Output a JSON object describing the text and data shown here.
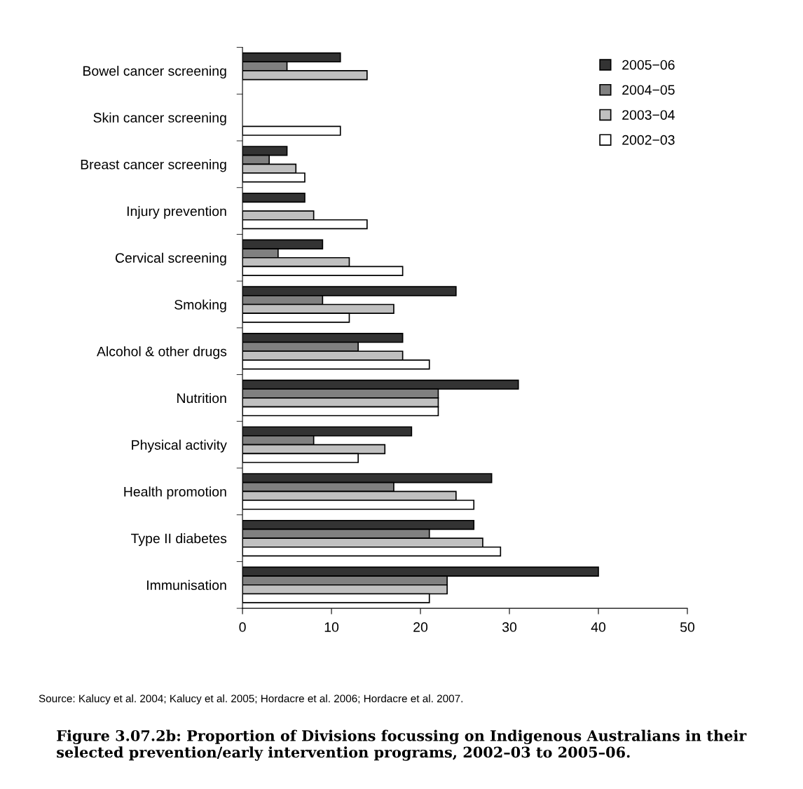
{
  "chart_data": {
    "type": "bar",
    "orientation": "horizontal",
    "title": "Figure 3.07.2b: Proportion of Divisions focussing on Indigenous Australians in their selected prevention/early intervention programs, 2002–03 to 2005–06.",
    "categories": [
      "Bowel cancer screening",
      "Skin cancer screening",
      "Breast cancer screening",
      "Injury prevention",
      "Cervical screening",
      "Smoking",
      "Alcohol & other drugs",
      "Nutrition",
      "Physical activity",
      "Health promotion",
      "Type II diabetes",
      "Immunisation"
    ],
    "series": [
      {
        "name": "2005−06",
        "color": "#333333",
        "values": [
          11,
          null,
          5,
          7,
          9,
          24,
          18,
          31,
          19,
          28,
          26,
          40
        ]
      },
      {
        "name": "2004−05",
        "color": "#808080",
        "values": [
          5,
          null,
          3,
          null,
          4,
          9,
          13,
          22,
          8,
          17,
          21,
          23
        ]
      },
      {
        "name": "2003−04",
        "color": "#c0c0c0",
        "values": [
          14,
          null,
          6,
          8,
          12,
          17,
          18,
          22,
          16,
          24,
          27,
          23
        ]
      },
      {
        "name": "2002−03",
        "color": "#ffffff",
        "values": [
          null,
          11,
          7,
          14,
          18,
          12,
          21,
          22,
          13,
          26,
          29,
          21
        ]
      }
    ],
    "xlim": [
      0,
      50
    ],
    "xticks": [
      0,
      10,
      20,
      30,
      40,
      50
    ],
    "grid": false,
    "legend": "top right",
    "annotations": [
      "Source: Kalucy et al. 2004; Kalucy et al. 2005; Hordacre et al. 2006; Hordacre et al. 2007."
    ]
  }
}
